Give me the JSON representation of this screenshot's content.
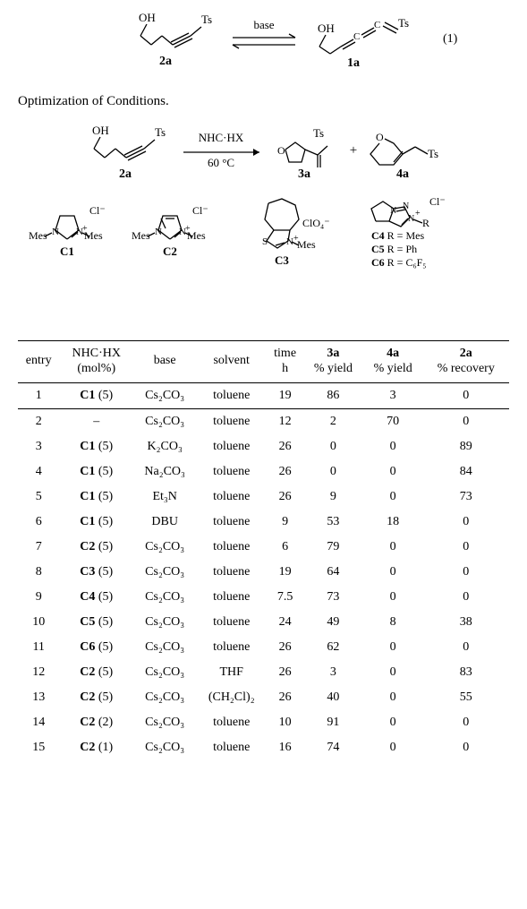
{
  "scheme1": {
    "reagent_left_label": "2a",
    "reagent_right_label": "1a",
    "arrow_label": "base",
    "label_OH": "OH",
    "label_Ts": "Ts",
    "allene": "C=C=C",
    "eq_num": "(1)"
  },
  "caption": "Optimization of Conditions.",
  "scheme2": {
    "sm_label": "2a",
    "cond_top": "NHC·HX",
    "cond_bottom": "60 °C",
    "prod1_label": "3a",
    "prod2_label": "4a",
    "plus": "+",
    "OH": "OH",
    "Ts": "Ts",
    "O": "O",
    "catalysts": {
      "C1": {
        "name": "C1",
        "left": "Mes",
        "right": "Mes",
        "counter": "Cl⁻"
      },
      "C2": {
        "name": "C2",
        "left": "Mes",
        "right": "Mes",
        "counter": "Cl⁻"
      },
      "C3": {
        "name": "C3",
        "right": "Mes",
        "counter": "ClO₄⁻",
        "S": "S"
      },
      "Cbox": {
        "counter": "Cl⁻",
        "Rlabel": "R",
        "lines": [
          "C4 R = Mes",
          "C5 R = Ph",
          "C6 R = C₆F₅"
        ]
      },
      "N": "N"
    }
  },
  "table": {
    "headers": {
      "entry": "entry",
      "nhc_top": "NHC·HX",
      "nhc_bot": "(mol%)",
      "base": "base",
      "solvent": "solvent",
      "time_top": "time",
      "time_bot": "h",
      "y3a_top": "3a",
      "y3a_bot": "% yield",
      "y4a_top": "4a",
      "y4a_bot": "% yield",
      "r2a_top": "2a",
      "r2a_bot": "% recovery"
    },
    "rows": [
      {
        "entry": "1",
        "nhc_cat": "C1",
        "nhc_mol": "(5)",
        "base": "Cs₂CO₃",
        "solvent": "toluene",
        "time": "19",
        "y3a": "86",
        "y4a": "3",
        "r2a": "0"
      },
      {
        "entry": "2",
        "nhc_cat": "",
        "nhc_mol": "–",
        "base": "Cs₂CO₃",
        "solvent": "toluene",
        "time": "12",
        "y3a": "2",
        "y4a": "70",
        "r2a": "0"
      },
      {
        "entry": "3",
        "nhc_cat": "C1",
        "nhc_mol": "(5)",
        "base": "K₂CO₃",
        "solvent": "toluene",
        "time": "26",
        "y3a": "0",
        "y4a": "0",
        "r2a": "89"
      },
      {
        "entry": "4",
        "nhc_cat": "C1",
        "nhc_mol": "(5)",
        "base": "Na₂CO₃",
        "solvent": "toluene",
        "time": "26",
        "y3a": "0",
        "y4a": "0",
        "r2a": "84"
      },
      {
        "entry": "5",
        "nhc_cat": "C1",
        "nhc_mol": "(5)",
        "base": "Et₃N",
        "solvent": "toluene",
        "time": "26",
        "y3a": "9",
        "y4a": "0",
        "r2a": "73"
      },
      {
        "entry": "6",
        "nhc_cat": "C1",
        "nhc_mol": "(5)",
        "base": "DBU",
        "solvent": "toluene",
        "time": "9",
        "y3a": "53",
        "y4a": "18",
        "r2a": "0"
      },
      {
        "entry": "7",
        "nhc_cat": "C2",
        "nhc_mol": "(5)",
        "base": "Cs₂CO₃",
        "solvent": "toluene",
        "time": "6",
        "y3a": "79",
        "y4a": "0",
        "r2a": "0"
      },
      {
        "entry": "8",
        "nhc_cat": "C3",
        "nhc_mol": "(5)",
        "base": "Cs₂CO₃",
        "solvent": "toluene",
        "time": "19",
        "y3a": "64",
        "y4a": "0",
        "r2a": "0"
      },
      {
        "entry": "9",
        "nhc_cat": "C4",
        "nhc_mol": "(5)",
        "base": "Cs₂CO₃",
        "solvent": "toluene",
        "time": "7.5",
        "y3a": "73",
        "y4a": "0",
        "r2a": "0"
      },
      {
        "entry": "10",
        "nhc_cat": "C5",
        "nhc_mol": "(5)",
        "base": "Cs₂CO₃",
        "solvent": "toluene",
        "time": "24",
        "y3a": "49",
        "y4a": "8",
        "r2a": "38"
      },
      {
        "entry": "11",
        "nhc_cat": "C6",
        "nhc_mol": "(5)",
        "base": "Cs₂CO₃",
        "solvent": "toluene",
        "time": "26",
        "y3a": "62",
        "y4a": "0",
        "r2a": "0"
      },
      {
        "entry": "12",
        "nhc_cat": "C2",
        "nhc_mol": "(5)",
        "base": "Cs₂CO₃",
        "solvent": "THF",
        "time": "26",
        "y3a": "3",
        "y4a": "0",
        "r2a": "83"
      },
      {
        "entry": "13",
        "nhc_cat": "C2",
        "nhc_mol": "(5)",
        "base": "Cs₂CO₃",
        "solvent": "(CH₂Cl)₂",
        "time": "26",
        "y3a": "40",
        "y4a": "0",
        "r2a": "55"
      },
      {
        "entry": "14",
        "nhc_cat": "C2",
        "nhc_mol": "(2)",
        "base": "Cs₂CO₃",
        "solvent": "toluene",
        "time": "10",
        "y3a": "91",
        "y4a": "0",
        "r2a": "0"
      },
      {
        "entry": "15",
        "nhc_cat": "C2",
        "nhc_mol": "(1)",
        "base": "Cs₂CO₃",
        "solvent": "toluene",
        "time": "16",
        "y3a": "74",
        "y4a": "0",
        "r2a": "0"
      }
    ]
  },
  "style": {
    "stroke": "#000000",
    "stroke_width": 1.3,
    "font_family": "Times New Roman",
    "chem_fontsize": 13,
    "label_fontsize": 14
  }
}
